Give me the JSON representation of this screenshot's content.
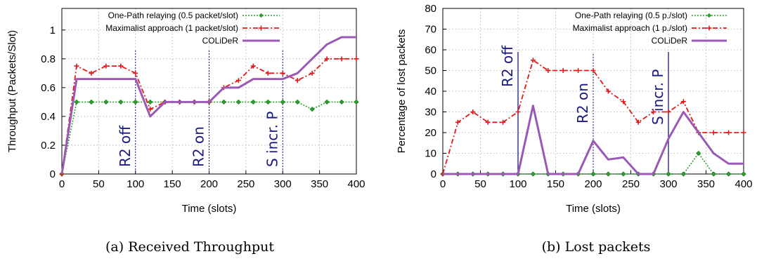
{
  "figure": {
    "colors": {
      "one_path": "#2ca02c",
      "maximalist": "#e31a1c",
      "colider": "#9b59b6",
      "marker": "#1a1a80"
    },
    "panels": [
      {
        "caption": "(a) Received Throughput"
      },
      {
        "caption": "(b) Lost packets"
      }
    ]
  },
  "chart_data": [
    {
      "type": "line",
      "title": "",
      "xlabel": "Time (slots)",
      "ylabel": "Throughput (Packets/Slot)",
      "xlim": [
        0,
        400
      ],
      "ylim": [
        0,
        1.15
      ],
      "xticks": [
        0,
        50,
        100,
        150,
        200,
        250,
        300,
        350,
        400
      ],
      "yticks": [
        0,
        0.2,
        0.4,
        0.6,
        0.8,
        1
      ],
      "grid": true,
      "legend_position": "top-right",
      "series": [
        {
          "name": "One-Path relaying (0.5 packet/slot)",
          "x": [
            0,
            20,
            40,
            60,
            80,
            100,
            120,
            140,
            160,
            180,
            200,
            220,
            240,
            260,
            280,
            300,
            320,
            340,
            360,
            380,
            400
          ],
          "values": [
            0,
            0.5,
            0.5,
            0.5,
            0.5,
            0.5,
            0.5,
            0.5,
            0.5,
            0.5,
            0.5,
            0.5,
            0.5,
            0.5,
            0.5,
            0.5,
            0.5,
            0.45,
            0.5,
            0.5,
            0.5
          ]
        },
        {
          "name": "Maximalist approach (1 packet/slot)",
          "x": [
            0,
            20,
            40,
            60,
            80,
            100,
            120,
            140,
            160,
            180,
            200,
            220,
            240,
            260,
            280,
            300,
            320,
            340,
            360,
            380,
            400
          ],
          "values": [
            0,
            0.75,
            0.7,
            0.75,
            0.75,
            0.7,
            0.45,
            0.5,
            0.5,
            0.5,
            0.5,
            0.6,
            0.65,
            0.75,
            0.7,
            0.7,
            0.65,
            0.7,
            0.8,
            0.8,
            0.8
          ]
        },
        {
          "name": "COLiDeR",
          "x": [
            0,
            20,
            40,
            60,
            80,
            100,
            120,
            140,
            160,
            180,
            200,
            220,
            240,
            260,
            280,
            300,
            320,
            340,
            360,
            380,
            400
          ],
          "values": [
            0,
            0.66,
            0.66,
            0.66,
            0.66,
            0.66,
            0.4,
            0.5,
            0.5,
            0.5,
            0.5,
            0.6,
            0.6,
            0.66,
            0.66,
            0.66,
            0.7,
            0.8,
            0.9,
            0.95,
            0.95
          ]
        }
      ],
      "markers": [
        {
          "x": 100,
          "label": "R2 off"
        },
        {
          "x": 200,
          "label": "R2 on"
        },
        {
          "x": 300,
          "label": "S incr. P"
        }
      ]
    },
    {
      "type": "line",
      "title": "",
      "xlabel": "Time (slots)",
      "ylabel": "Percentage of lost packets",
      "xlim": [
        0,
        400
      ],
      "ylim": [
        0,
        80
      ],
      "xticks": [
        0,
        50,
        100,
        150,
        200,
        250,
        300,
        350,
        400
      ],
      "yticks": [
        0,
        10,
        20,
        30,
        40,
        50,
        60,
        70,
        80
      ],
      "grid": true,
      "legend_position": "top-right",
      "series": [
        {
          "name": "One-Path relaying (0.5 p./slot)",
          "x": [
            0,
            20,
            40,
            60,
            80,
            100,
            120,
            140,
            160,
            180,
            200,
            220,
            240,
            260,
            280,
            300,
            320,
            340,
            360,
            380,
            400
          ],
          "values": [
            0,
            0,
            0,
            0,
            0,
            0,
            0,
            0,
            0,
            0,
            0,
            0,
            0,
            0,
            0,
            0,
            0,
            10,
            0,
            0,
            0
          ]
        },
        {
          "name": "Maximalist approach (1 p./slot)",
          "x": [
            0,
            20,
            40,
            60,
            80,
            100,
            120,
            140,
            160,
            180,
            200,
            220,
            240,
            260,
            280,
            300,
            320,
            340,
            360,
            380,
            400
          ],
          "values": [
            0,
            25,
            30,
            25,
            25,
            30,
            55,
            50,
            50,
            50,
            50,
            40,
            35,
            25,
            30,
            30,
            35,
            20,
            20,
            20,
            20
          ]
        },
        {
          "name": "COLiDeR",
          "x": [
            0,
            20,
            40,
            60,
            80,
            100,
            120,
            140,
            160,
            180,
            200,
            220,
            240,
            260,
            280,
            300,
            320,
            340,
            360,
            380,
            400
          ],
          "values": [
            0,
            0,
            0,
            0,
            0,
            0,
            33,
            0,
            0,
            0,
            16,
            7,
            8,
            0,
            0,
            17,
            30,
            20,
            10,
            5,
            5
          ]
        }
      ],
      "markers": [
        {
          "x": 100,
          "label": "R2 off"
        },
        {
          "x": 200,
          "label": "R2 on"
        },
        {
          "x": 300,
          "label": "S incr. P"
        }
      ]
    }
  ]
}
